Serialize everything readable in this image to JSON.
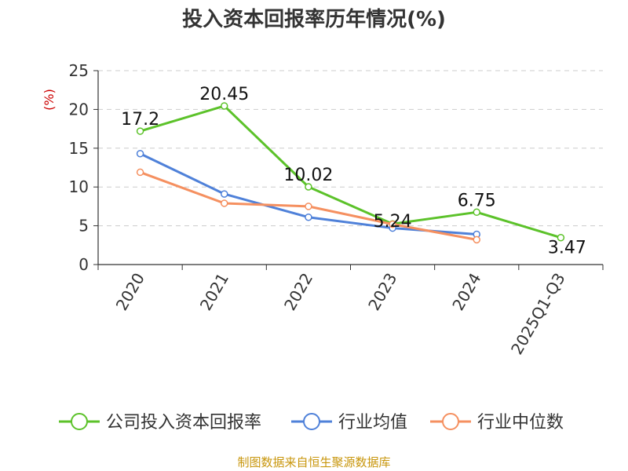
{
  "chart_data": {
    "type": "line",
    "title": "投入资本回报率历年情况(%)",
    "ylabel": "(%)",
    "xlabel": "",
    "ylim": [
      0,
      25
    ],
    "yticks": [
      0,
      5,
      10,
      15,
      20,
      25
    ],
    "grid": true,
    "legend_position": "bottom",
    "categories": [
      "2020",
      "2021",
      "2022",
      "2023",
      "2024",
      "2025Q1-Q3"
    ],
    "series": [
      {
        "name": "公司投入资本回报率",
        "color": "#5cc22a",
        "values": [
          17.2,
          20.45,
          10.02,
          5.24,
          6.75,
          3.47
        ],
        "labels": [
          "17.2",
          "20.45",
          "10.02",
          "5.24",
          "6.75",
          "3.47"
        ]
      },
      {
        "name": "行业均值",
        "color": "#4f81d9",
        "values": [
          14.3,
          9.1,
          6.1,
          4.7,
          3.9,
          null
        ],
        "labels": []
      },
      {
        "name": "行业中位数",
        "color": "#f59060",
        "values": [
          11.9,
          7.9,
          7.5,
          5.2,
          3.2,
          null
        ],
        "labels": []
      }
    ]
  },
  "source": "制图数据来自恒生聚源数据库"
}
